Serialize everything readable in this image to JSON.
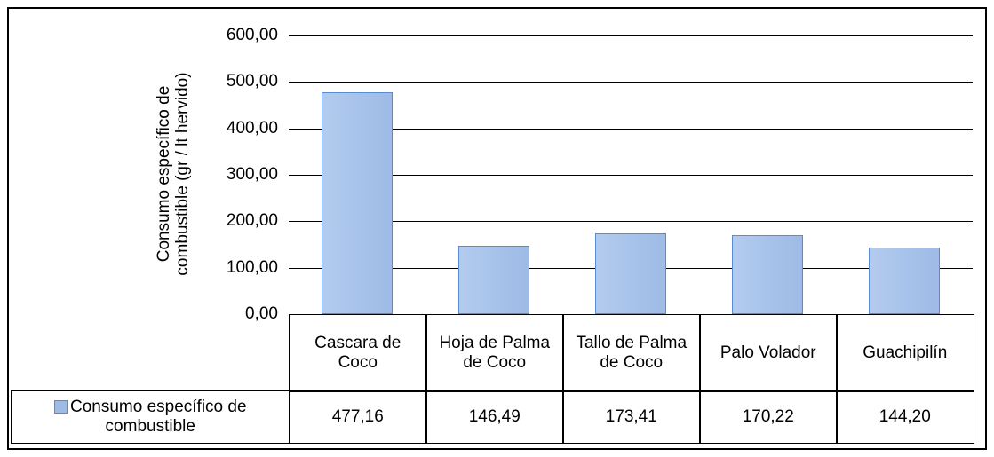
{
  "chart_data": {
    "type": "bar",
    "y_label": "Consumo específico de combustible (gr / lt hervido)",
    "categories": [
      "Cascara de Coco",
      "Hoja de Palma de Coco",
      "Tallo de Palma de Coco",
      "Palo Volador",
      "Guachipilín"
    ],
    "series": [
      {
        "name": "Consumo específico de combustible",
        "color": "#9dbbe6",
        "values": [
          477.16,
          146.49,
          173.41,
          170.22,
          144.2
        ],
        "value_labels": [
          "477,16",
          "146,49",
          "173,41",
          "170,22",
          "144,20"
        ]
      }
    ],
    "ylim": [
      0,
      600
    ],
    "yticks": [
      {
        "value": 0,
        "label": "0,00"
      },
      {
        "value": 100,
        "label": "100,00"
      },
      {
        "value": 200,
        "label": "200,00"
      },
      {
        "value": 300,
        "label": "300,00"
      },
      {
        "value": 400,
        "label": "400,00"
      },
      {
        "value": 500,
        "label": "500,00"
      },
      {
        "value": 600,
        "label": "600,00"
      }
    ],
    "grid": true,
    "data_table": true
  }
}
